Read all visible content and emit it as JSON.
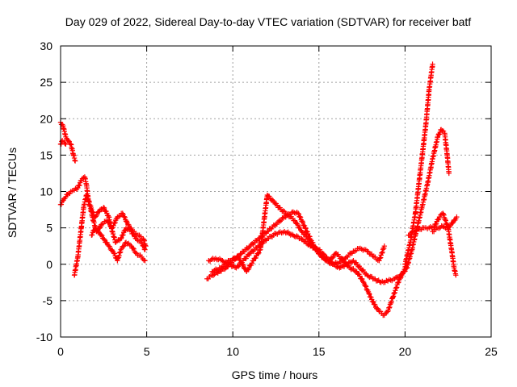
{
  "chart_data": {
    "type": "scatter",
    "title": "Day 029 of 2022, Sidereal Day-to-day VTEC variation (SDTVAR) for receiver batf",
    "xlabel": "GPS time / hours",
    "ylabel": "SDTVAR / TECUs",
    "xlim": [
      0,
      25
    ],
    "ylim": [
      -10,
      30
    ],
    "xticks": [
      0,
      5,
      10,
      15,
      20,
      25
    ],
    "yticks": [
      -10,
      -5,
      0,
      5,
      10,
      15,
      20,
      25,
      30
    ],
    "grid": true,
    "marker": "plus",
    "color": "#ff0000",
    "series": [
      {
        "name": "seg-a",
        "points": [
          [
            0.0,
            19.5
          ],
          [
            0.15,
            19.0
          ],
          [
            0.3,
            17.5
          ],
          [
            0.45,
            17.0
          ],
          [
            0.6,
            16.5
          ],
          [
            0.75,
            15.0
          ],
          [
            0.85,
            14.2
          ]
        ]
      },
      {
        "name": "seg-b",
        "points": [
          [
            0.0,
            8.2
          ],
          [
            0.2,
            9.0
          ],
          [
            0.4,
            9.6
          ],
          [
            0.6,
            10.0
          ],
          [
            0.8,
            10.2
          ],
          [
            1.0,
            10.5
          ],
          [
            1.2,
            11.5
          ],
          [
            1.4,
            12.0
          ],
          [
            1.5,
            11.0
          ],
          [
            1.6,
            9.0
          ],
          [
            1.8,
            7.5
          ],
          [
            2.0,
            6.5
          ],
          [
            2.3,
            7.5
          ],
          [
            2.5,
            7.8
          ],
          [
            2.8,
            6.5
          ],
          [
            3.0,
            4.5
          ],
          [
            3.2,
            3.0
          ],
          [
            3.5,
            3.5
          ],
          [
            3.8,
            5.0
          ],
          [
            4.1,
            4.5
          ],
          [
            4.4,
            3.5
          ],
          [
            4.7,
            3.0
          ],
          [
            4.9,
            2.0
          ]
        ]
      },
      {
        "name": "seg-c",
        "points": [
          [
            0.0,
            16.5
          ],
          [
            0.1,
            17.0
          ],
          [
            0.2,
            16.8
          ],
          [
            0.3,
            16.5
          ]
        ]
      },
      {
        "name": "seg-d",
        "points": [
          [
            0.8,
            -1.5
          ],
          [
            1.0,
            1.0
          ],
          [
            1.2,
            5.0
          ],
          [
            1.35,
            8.0
          ],
          [
            1.5,
            9.5
          ],
          [
            1.7,
            8.0
          ],
          [
            1.9,
            6.0
          ],
          [
            2.1,
            4.5
          ],
          [
            2.4,
            5.5
          ],
          [
            2.7,
            6.0
          ],
          [
            3.0,
            5.0
          ],
          [
            3.3,
            6.5
          ],
          [
            3.6,
            7.0
          ],
          [
            3.9,
            5.5
          ],
          [
            4.2,
            4.5
          ],
          [
            4.5,
            4.0
          ],
          [
            4.8,
            3.5
          ],
          [
            4.95,
            2.5
          ]
        ]
      },
      {
        "name": "seg-e",
        "points": [
          [
            1.8,
            4.0
          ],
          [
            2.0,
            5.0
          ],
          [
            2.2,
            4.5
          ],
          [
            2.5,
            3.5
          ],
          [
            2.8,
            2.5
          ],
          [
            3.1,
            1.5
          ],
          [
            3.3,
            0.5
          ],
          [
            3.5,
            2.0
          ],
          [
            3.8,
            3.0
          ],
          [
            4.1,
            2.5
          ],
          [
            4.4,
            1.5
          ],
          [
            4.7,
            1.0
          ],
          [
            4.9,
            0.5
          ]
        ]
      },
      {
        "name": "seg-f",
        "points": [
          [
            8.5,
            -2.0
          ],
          [
            8.8,
            -1.5
          ],
          [
            9.2,
            -1.0
          ],
          [
            9.6,
            -0.5
          ],
          [
            10.0,
            0.5
          ],
          [
            10.5,
            1.5
          ],
          [
            11.0,
            2.5
          ],
          [
            11.5,
            3.5
          ],
          [
            12.0,
            4.5
          ],
          [
            12.5,
            5.5
          ],
          [
            13.0,
            6.5
          ],
          [
            13.5,
            7.2
          ],
          [
            13.8,
            7.0
          ],
          [
            14.2,
            5.0
          ],
          [
            14.6,
            3.0
          ],
          [
            15.0,
            1.5
          ],
          [
            15.4,
            0.5
          ],
          [
            15.8,
            0.0
          ],
          [
            16.2,
            0.3
          ],
          [
            16.6,
            1.0
          ],
          [
            17.0,
            1.8
          ],
          [
            17.4,
            2.2
          ],
          [
            17.8,
            1.8
          ],
          [
            18.2,
            1.0
          ],
          [
            18.5,
            0.5
          ],
          [
            18.8,
            2.5
          ]
        ]
      },
      {
        "name": "seg-g",
        "points": [
          [
            8.6,
            0.5
          ],
          [
            9.0,
            0.8
          ],
          [
            9.4,
            0.5
          ],
          [
            9.8,
            0.0
          ],
          [
            10.2,
            -0.5
          ],
          [
            10.6,
            0.5
          ],
          [
            11.0,
            1.5
          ],
          [
            11.5,
            2.5
          ],
          [
            12.0,
            3.5
          ],
          [
            12.5,
            4.2
          ],
          [
            13.0,
            4.5
          ],
          [
            13.5,
            4.0
          ],
          [
            14.0,
            3.5
          ],
          [
            14.5,
            2.5
          ],
          [
            15.0,
            2.0
          ],
          [
            15.4,
            1.0
          ],
          [
            15.8,
            0.0
          ],
          [
            16.2,
            -0.5
          ],
          [
            16.6,
            0.0
          ],
          [
            17.0,
            0.5
          ],
          [
            17.4,
            -0.5
          ],
          [
            17.8,
            -1.5
          ],
          [
            18.2,
            -2.0
          ],
          [
            18.6,
            -2.5
          ],
          [
            19.0,
            -2.3
          ],
          [
            19.4,
            -2.0
          ],
          [
            19.8,
            -1.5
          ],
          [
            20.1,
            -0.5
          ]
        ]
      },
      {
        "name": "seg-h",
        "points": [
          [
            8.8,
            -1.0
          ],
          [
            9.3,
            -0.5
          ],
          [
            9.8,
            0.5
          ],
          [
            10.3,
            1.0
          ],
          [
            10.8,
            -1.0
          ],
          [
            11.2,
            0.5
          ],
          [
            11.6,
            2.0
          ],
          [
            12.0,
            9.5
          ],
          [
            12.4,
            8.5
          ],
          [
            12.8,
            7.5
          ],
          [
            13.2,
            6.8
          ],
          [
            13.6,
            6.0
          ],
          [
            14.0,
            4.5
          ],
          [
            14.4,
            3.5
          ],
          [
            14.8,
            2.0
          ],
          [
            15.2,
            1.0
          ],
          [
            15.6,
            0.5
          ],
          [
            16.0,
            1.5
          ],
          [
            16.4,
            0.5
          ],
          [
            16.8,
            -0.5
          ],
          [
            17.2,
            -1.0
          ],
          [
            17.6,
            -2.5
          ],
          [
            17.9,
            -4.0
          ],
          [
            18.2,
            -5.5
          ],
          [
            18.5,
            -6.5
          ],
          [
            18.8,
            -7.0
          ],
          [
            19.0,
            -6.5
          ],
          [
            19.3,
            -4.5
          ],
          [
            19.6,
            -2.5
          ],
          [
            19.9,
            -1.0
          ],
          [
            20.1,
            0.0
          ]
        ]
      },
      {
        "name": "seg-i",
        "points": [
          [
            20.0,
            0.0
          ],
          [
            20.3,
            3.0
          ],
          [
            20.6,
            7.0
          ],
          [
            20.9,
            13.0
          ],
          [
            21.2,
            19.0
          ],
          [
            21.4,
            24.0
          ],
          [
            21.6,
            27.5
          ]
        ]
      },
      {
        "name": "seg-j",
        "points": [
          [
            20.1,
            -0.5
          ],
          [
            20.4,
            2.0
          ],
          [
            20.7,
            5.0
          ],
          [
            21.0,
            8.0
          ],
          [
            21.3,
            11.0
          ],
          [
            21.6,
            14.5
          ],
          [
            21.9,
            17.5
          ],
          [
            22.1,
            18.5
          ],
          [
            22.3,
            18.0
          ],
          [
            22.45,
            15.0
          ],
          [
            22.55,
            12.5
          ]
        ]
      },
      {
        "name": "seg-k",
        "points": [
          [
            20.2,
            4.0
          ],
          [
            20.5,
            4.5
          ],
          [
            20.8,
            4.8
          ],
          [
            21.1,
            5.0
          ],
          [
            21.4,
            5.0
          ],
          [
            21.7,
            5.2
          ],
          [
            22.0,
            6.5
          ],
          [
            22.2,
            7.0
          ],
          [
            22.5,
            5.0
          ],
          [
            22.7,
            2.0
          ],
          [
            22.85,
            -0.5
          ],
          [
            22.95,
            -1.5
          ]
        ]
      },
      {
        "name": "seg-l",
        "points": [
          [
            21.6,
            4.5
          ],
          [
            21.9,
            5.0
          ],
          [
            22.2,
            5.2
          ],
          [
            22.5,
            5.0
          ],
          [
            22.8,
            5.8
          ],
          [
            23.0,
            6.5
          ]
        ]
      }
    ]
  }
}
